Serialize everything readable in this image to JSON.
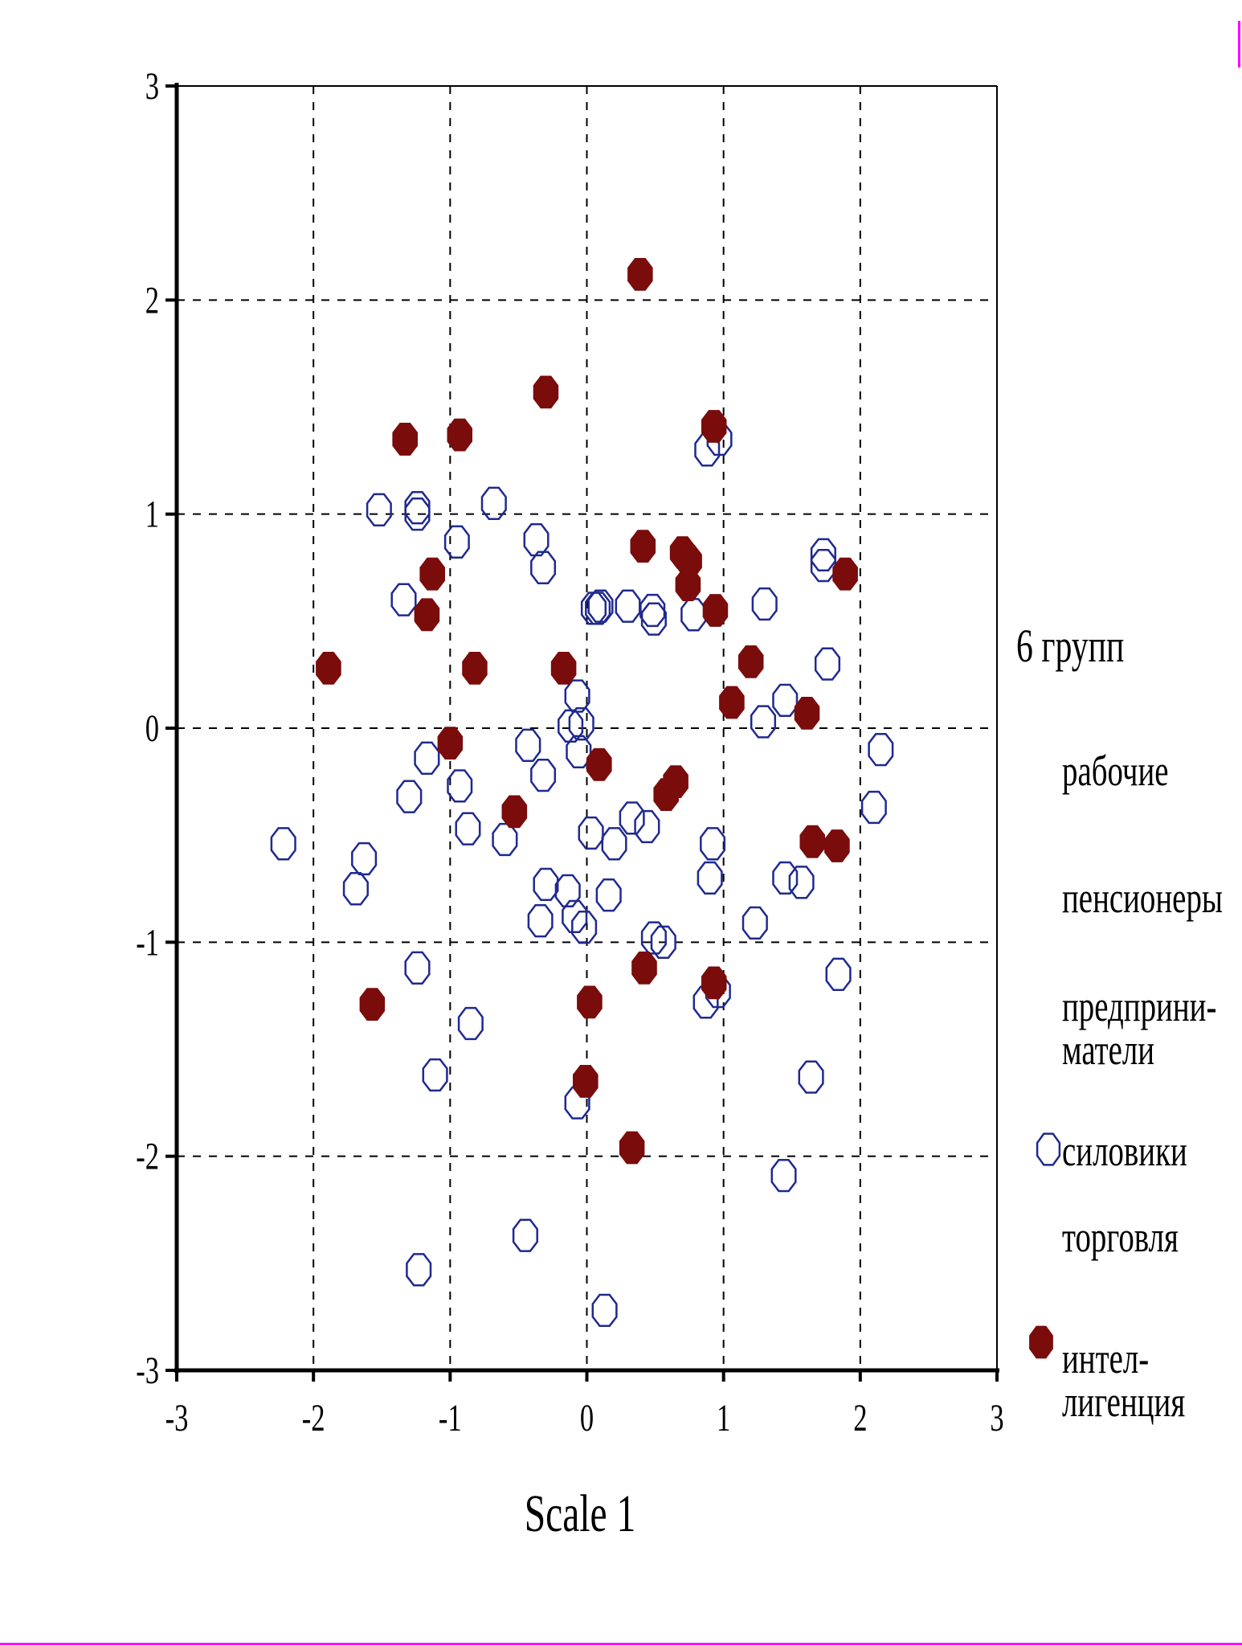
{
  "colors": {
    "open_marker": "#1f2a8f",
    "filled_marker": "#7a0c0c",
    "axis": "#000000",
    "grid": "#000000",
    "edge_accent": "#ff00ff"
  },
  "legend": {
    "title": "6 групп",
    "items": [
      {
        "label": "рабочие",
        "marker": "none"
      },
      {
        "label": "пенсионеры",
        "marker": "none"
      },
      {
        "label": "предприни-\nматели",
        "marker": "none"
      },
      {
        "label": "силовики",
        "marker": "open-circle-icon"
      },
      {
        "label": "торговля",
        "marker": "none"
      },
      {
        "label": "интел-\nлигенция",
        "marker": "filled-circle-icon"
      }
    ]
  },
  "chart_data": {
    "type": "scatter",
    "xlabel": "Scale 1",
    "ylabel": "",
    "xlim": [
      -3,
      3
    ],
    "ylim": [
      -3,
      3
    ],
    "xticks": [
      -3,
      -2,
      -1,
      0,
      1,
      2,
      3
    ],
    "yticks": [
      -3,
      -2,
      -1,
      0,
      1,
      2,
      3
    ],
    "grid": true,
    "legend_position": "right",
    "series": [
      {
        "name": "силовики",
        "marker": "open",
        "points": [
          [
            -1.52,
            1.02
          ],
          [
            -1.24,
            1.03
          ],
          [
            -1.24,
            1.0
          ],
          [
            -0.68,
            1.05
          ],
          [
            -0.95,
            0.87
          ],
          [
            -0.37,
            0.88
          ],
          [
            -0.32,
            0.75
          ],
          [
            -1.34,
            0.6
          ],
          [
            0.05,
            0.56
          ],
          [
            0.1,
            0.57
          ],
          [
            0.08,
            0.56
          ],
          [
            0.3,
            0.57
          ],
          [
            0.48,
            0.55
          ],
          [
            0.49,
            0.51
          ],
          [
            0.78,
            0.53
          ],
          [
            0.88,
            1.3
          ],
          [
            0.97,
            1.35
          ],
          [
            1.3,
            0.58
          ],
          [
            1.73,
            0.81
          ],
          [
            1.73,
            0.76
          ],
          [
            1.76,
            0.3
          ],
          [
            1.45,
            0.13
          ],
          [
            1.29,
            0.03
          ],
          [
            2.15,
            -0.1
          ],
          [
            2.1,
            -0.37
          ],
          [
            -0.07,
            0.15
          ],
          [
            -0.12,
            0.01
          ],
          [
            -0.04,
            0.02
          ],
          [
            -0.06,
            -0.11
          ],
          [
            -0.43,
            -0.08
          ],
          [
            -0.32,
            -0.22
          ],
          [
            -1.17,
            -0.14
          ],
          [
            -1.3,
            -0.32
          ],
          [
            -0.93,
            -0.27
          ],
          [
            -0.87,
            -0.47
          ],
          [
            -0.6,
            -0.52
          ],
          [
            -2.22,
            -0.54
          ],
          [
            -1.63,
            -0.61
          ],
          [
            -1.69,
            -0.75
          ],
          [
            0.03,
            -0.49
          ],
          [
            0.2,
            -0.54
          ],
          [
            0.33,
            -0.42
          ],
          [
            0.44,
            -0.46
          ],
          [
            0.92,
            -0.54
          ],
          [
            0.9,
            -0.7
          ],
          [
            1.45,
            -0.7
          ],
          [
            1.57,
            -0.72
          ],
          [
            1.23,
            -0.91
          ],
          [
            -0.3,
            -0.73
          ],
          [
            -0.14,
            -0.76
          ],
          [
            -0.09,
            -0.88
          ],
          [
            -0.34,
            -0.9
          ],
          [
            -0.02,
            -0.93
          ],
          [
            0.16,
            -0.78
          ],
          [
            0.49,
            -0.98
          ],
          [
            0.56,
            -1.0
          ],
          [
            0.87,
            -1.28
          ],
          [
            0.96,
            -1.23
          ],
          [
            1.84,
            -1.15
          ],
          [
            -1.24,
            -1.12
          ],
          [
            -0.85,
            -1.38
          ],
          [
            -1.11,
            -1.62
          ],
          [
            -0.07,
            -1.75
          ],
          [
            1.64,
            -1.63
          ],
          [
            1.44,
            -2.09
          ],
          [
            -0.45,
            -2.37
          ],
          [
            -1.23,
            -2.53
          ],
          [
            0.13,
            -2.72
          ]
        ]
      },
      {
        "name": "интел-\nлигенция",
        "marker": "filled",
        "points": [
          [
            0.39,
            2.12
          ],
          [
            -0.3,
            1.57
          ],
          [
            -1.33,
            1.35
          ],
          [
            -0.93,
            1.37
          ],
          [
            0.93,
            1.41
          ],
          [
            -1.13,
            0.72
          ],
          [
            -1.17,
            0.53
          ],
          [
            0.41,
            0.85
          ],
          [
            0.7,
            0.82
          ],
          [
            0.75,
            0.78
          ],
          [
            0.74,
            0.67
          ],
          [
            0.94,
            0.55
          ],
          [
            1.89,
            0.72
          ],
          [
            -1.89,
            0.28
          ],
          [
            -0.82,
            0.28
          ],
          [
            -0.17,
            0.28
          ],
          [
            1.2,
            0.31
          ],
          [
            1.06,
            0.12
          ],
          [
            1.61,
            0.07
          ],
          [
            -1.0,
            -0.07
          ],
          [
            0.09,
            -0.17
          ],
          [
            0.65,
            -0.25
          ],
          [
            0.58,
            -0.31
          ],
          [
            -0.53,
            -0.39
          ],
          [
            1.65,
            -0.53
          ],
          [
            1.83,
            -0.55
          ],
          [
            0.42,
            -1.12
          ],
          [
            0.93,
            -1.19
          ],
          [
            0.02,
            -1.28
          ],
          [
            -1.57,
            -1.29
          ],
          [
            -0.01,
            -1.65
          ],
          [
            0.33,
            -1.96
          ]
        ]
      }
    ]
  }
}
